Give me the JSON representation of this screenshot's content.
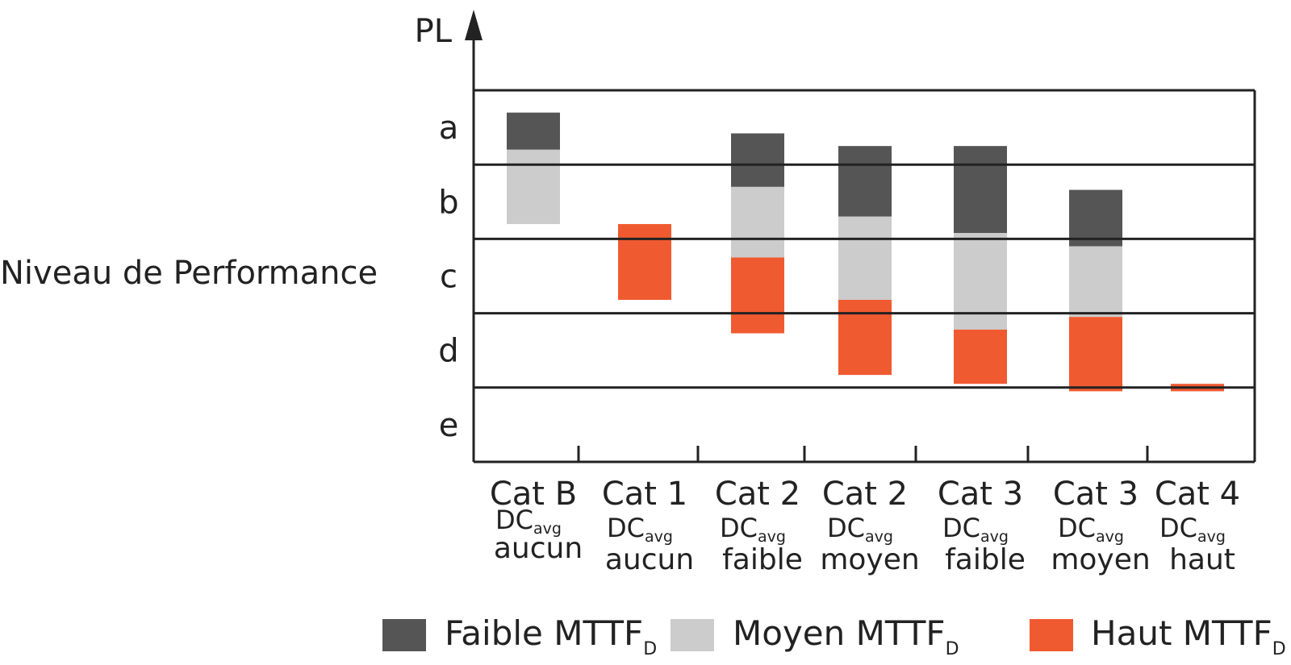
{
  "chart_data": {
    "type": "bar",
    "axis_title": "PL",
    "ylabel": "Niveau de Performance",
    "levels": [
      "a",
      "b",
      "c",
      "d",
      "e"
    ],
    "categories": [
      {
        "main": "Cat B",
        "dc": "DC",
        "dc_sub": "avg",
        "level": "aucun"
      },
      {
        "main": "Cat 1",
        "dc": "DC",
        "dc_sub": "avg",
        "level": "aucun"
      },
      {
        "main": "Cat 2",
        "dc": "DC",
        "dc_sub": "avg",
        "level": "faible"
      },
      {
        "main": "Cat 2",
        "dc": "DC",
        "dc_sub": "avg",
        "level": "moyen"
      },
      {
        "main": "Cat 3",
        "dc": "DC",
        "dc_sub": "avg",
        "level": "faible"
      },
      {
        "main": "Cat 3",
        "dc": "DC",
        "dc_sub": "avg",
        "level": "moyen"
      },
      {
        "main": "Cat 4",
        "dc": "DC",
        "dc_sub": "avg",
        "level": "haut"
      }
    ],
    "series": [
      {
        "key": "low",
        "label": "Faible MTTF",
        "label_sub": "D",
        "color": "#555555",
        "ranges": [
          [
            4.7,
            4.2
          ],
          null,
          [
            4.42,
            3.7
          ],
          [
            4.25,
            3.3
          ],
          [
            4.25,
            3.08
          ],
          [
            3.66,
            2.9
          ],
          null
        ]
      },
      {
        "key": "mid",
        "label": "Moyen MTTF",
        "label_sub": "D",
        "color": "#cccccc",
        "ranges": [
          [
            4.2,
            3.2
          ],
          null,
          [
            3.7,
            2.75
          ],
          [
            3.3,
            2.18
          ],
          [
            3.08,
            1.78
          ],
          [
            2.9,
            1.95
          ],
          null
        ]
      },
      {
        "key": "high",
        "label": "Haut MTTF",
        "label_sub": "D",
        "color": "#f05a30",
        "ranges": [
          null,
          [
            3.2,
            2.18
          ],
          [
            2.75,
            1.73
          ],
          [
            2.18,
            1.17
          ],
          [
            1.78,
            1.05
          ],
          [
            1.95,
            0.95
          ],
          [
            1.05,
            0.95
          ]
        ]
      }
    ],
    "ylim": [
      0,
      5
    ]
  }
}
